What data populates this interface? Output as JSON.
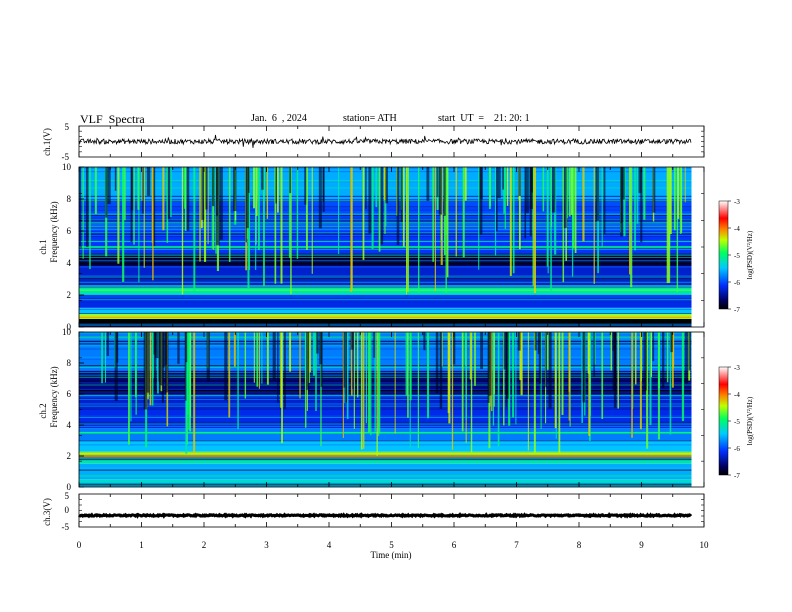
{
  "header": {
    "title": "VLF  Spectra",
    "date": "Jan.  6  , 2024",
    "station": "station= ATH",
    "start": "start  UT  =    21: 20: 1"
  },
  "chart_data": {
    "type": "heatmap",
    "xlabel": "Time  (min)",
    "xlim": [
      0,
      10
    ],
    "xticks": [
      "0",
      "1",
      "2",
      "3",
      "4",
      "5",
      "6",
      "7",
      "8",
      "9",
      "10"
    ],
    "data_end_min": 9.8,
    "panels": [
      {
        "id": "ch1-waveform",
        "ylabel": "ch.1(V)",
        "ylim": [
          -5,
          5
        ],
        "yticks": [
          "5",
          "-5"
        ],
        "baseline_v": 0,
        "amplitude_v": 0.8
      },
      {
        "id": "ch1-spectrogram",
        "ylabel_line1": "ch.1",
        "ylabel_line2": "Frequency  (kHz)",
        "ylim_khz": [
          0,
          10
        ],
        "yticks": [
          "0",
          "2",
          "4",
          "6",
          "8",
          "10"
        ],
        "colorbar": {
          "label": "log(PSD)(V²/Hz)",
          "range": [
            -7,
            -3
          ],
          "ticks": [
            "-3",
            "-4",
            "-5",
            "-6",
            "-7"
          ]
        },
        "bands": [
          {
            "khz": [
              0.0,
              0.5
            ],
            "level": -7.0
          },
          {
            "khz": [
              0.5,
              0.8
            ],
            "level": -4.5
          },
          {
            "khz": [
              0.8,
              1.2
            ],
            "level": -5.5
          },
          {
            "khz": [
              1.2,
              2.0
            ],
            "level": -6.2
          },
          {
            "khz": [
              2.0,
              2.6
            ],
            "level": -5.2
          },
          {
            "khz": [
              2.6,
              3.8
            ],
            "level": -6.3
          },
          {
            "khz": [
              3.8,
              4.6
            ],
            "level": -6.8
          },
          {
            "khz": [
              4.6,
              6.0
            ],
            "level": -6.1
          },
          {
            "khz": [
              6.0,
              8.0
            ],
            "level": -6.0
          },
          {
            "khz": [
              8.0,
              10.0
            ],
            "level": -5.6
          }
        ],
        "lines": [
          {
            "khz": 0.6,
            "level": -4.2
          },
          {
            "khz": 2.3,
            "level": -4.8
          },
          {
            "khz": 4.0,
            "level": -6.9
          },
          {
            "khz": 5.0,
            "level": -5.0
          }
        ]
      },
      {
        "id": "ch2-spectrogram",
        "ylabel_line1": "ch.2",
        "ylabel_line2": "Frequency  (kHz)",
        "ylim_khz": [
          0,
          10
        ],
        "yticks": [
          "0",
          "2",
          "4",
          "6",
          "8",
          "10"
        ],
        "colorbar": {
          "label": "log(PSD)(V²/Hz)",
          "range": [
            -7,
            -3
          ],
          "ticks": [
            "-3",
            "-4",
            "-5",
            "-6",
            "-7"
          ]
        },
        "bands": [
          {
            "khz": [
              0.0,
              0.5
            ],
            "level": -5.3
          },
          {
            "khz": [
              0.5,
              1.5
            ],
            "level": -5.6
          },
          {
            "khz": [
              1.5,
              1.9
            ],
            "level": -5.2
          },
          {
            "khz": [
              1.9,
              2.3
            ],
            "level": -4.4
          },
          {
            "khz": [
              2.3,
              3.0
            ],
            "level": -5.5
          },
          {
            "khz": [
              3.0,
              3.8
            ],
            "level": -5.8
          },
          {
            "khz": [
              3.8,
              5.0
            ],
            "level": -6.2
          },
          {
            "khz": [
              5.0,
              6.0
            ],
            "level": -6.3
          },
          {
            "khz": [
              6.0,
              7.5
            ],
            "level": -6.6
          },
          {
            "khz": [
              7.5,
              10.0
            ],
            "level": -5.8
          }
        ],
        "lines": [
          {
            "khz": 2.0,
            "level": -4.0
          },
          {
            "khz": 3.5,
            "level": -5.0
          },
          {
            "khz": 6.2,
            "level": -6.9
          }
        ]
      },
      {
        "id": "ch3-waveform",
        "ylabel": "ch.3(V)",
        "ylim": [
          -5,
          5
        ],
        "yticks": [
          "5",
          "0",
          "-5"
        ],
        "baseline_v": -1.5,
        "amplitude_v": 0.2
      }
    ]
  }
}
